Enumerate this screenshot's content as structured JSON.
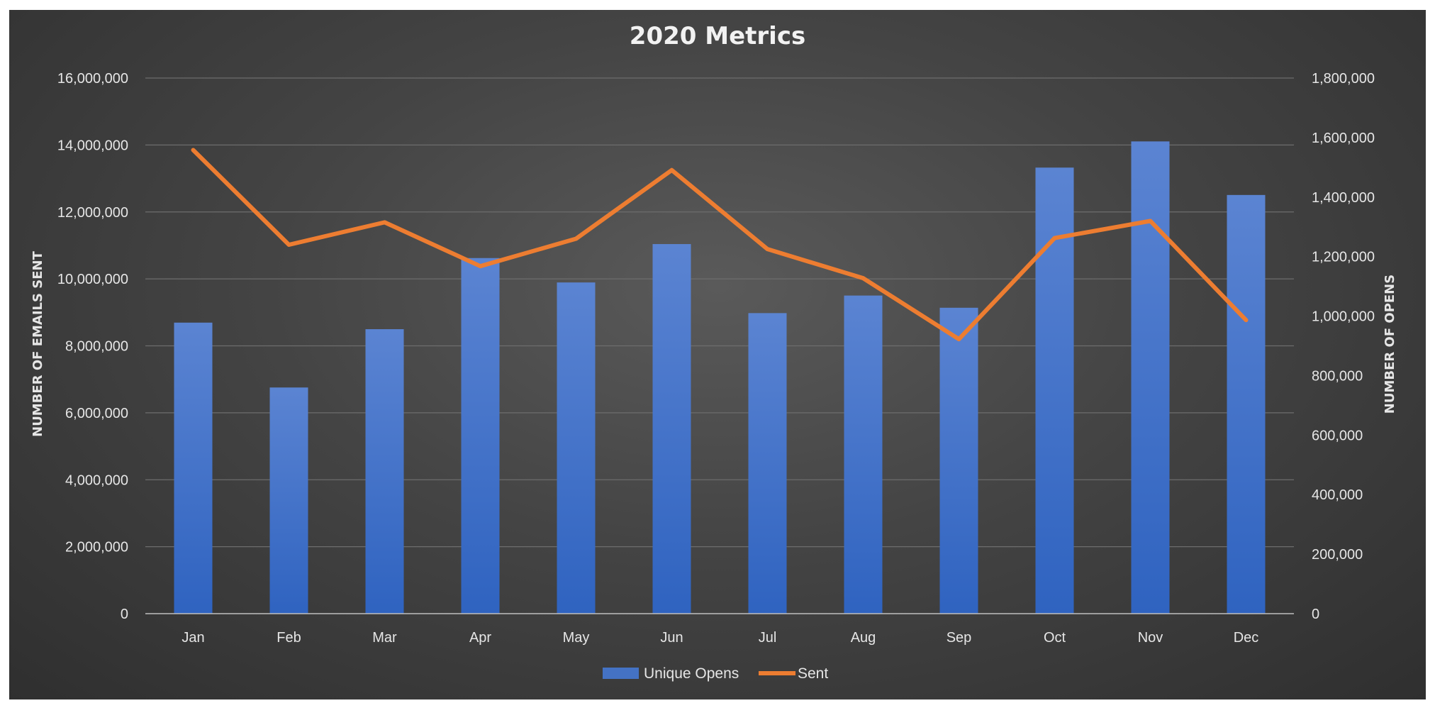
{
  "chart_data": {
    "type": "bar+line",
    "title": "2020 Metrics",
    "categories": [
      "Jan",
      "Feb",
      "Mar",
      "Apr",
      "May",
      "Jun",
      "Jul",
      "Aug",
      "Sep",
      "Oct",
      "Nov",
      "Dec"
    ],
    "series": [
      {
        "name": "Unique Opens",
        "type": "bar",
        "axis": "right",
        "color": "#4472c4",
        "values": [
          978000,
          760000,
          956000,
          1195000,
          1113000,
          1242000,
          1010000,
          1069000,
          1028000,
          1499000,
          1587000,
          1407000
        ]
      },
      {
        "name": "Sent",
        "type": "line",
        "axis": "left",
        "color": "#ed7d31",
        "values": [
          13850000,
          11020000,
          11690000,
          10380000,
          11200000,
          13250000,
          10890000,
          10020000,
          8200000,
          11220000,
          11730000,
          8770000
        ]
      }
    ],
    "y_left": {
      "label": "NUMBER OF EMAILS SENT",
      "min": 0,
      "max": 16000000,
      "ticks": [
        "0",
        "2,000,000",
        "4,000,000",
        "6,000,000",
        "8,000,000",
        "10,000,000",
        "12,000,000",
        "14,000,000",
        "16,000,000"
      ]
    },
    "y_right": {
      "label": "NUMBER OF OPENS",
      "min": 0,
      "max": 1800000,
      "ticks": [
        "0",
        "200,000",
        "400,000",
        "600,000",
        "800,000",
        "1,000,000",
        "1,200,000",
        "1,400,000",
        "1,600,000",
        "1,800,000"
      ]
    },
    "grid": true,
    "legend_position": "bottom"
  }
}
